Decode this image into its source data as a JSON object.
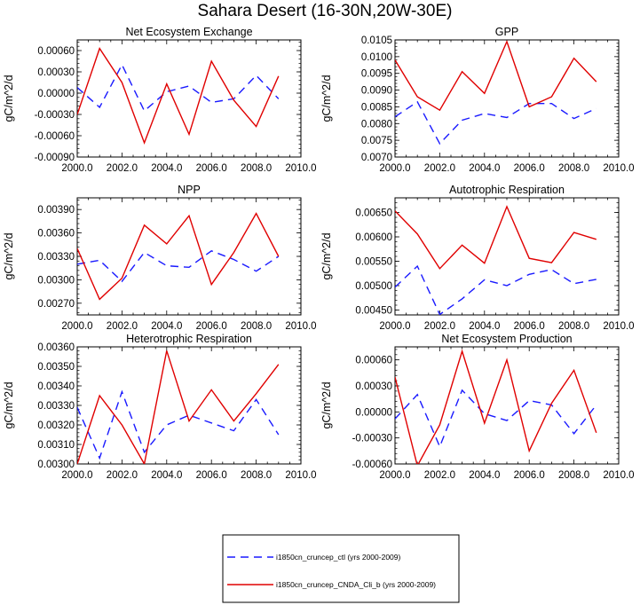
{
  "figure": {
    "title": "Sahara Desert (16-30N,20W-30E)"
  },
  "legend": {
    "entries": [
      {
        "label": "i1850cn_cruncep_ctl (yrs 2000-2009)",
        "color": "#1a1aff",
        "style": "dashed"
      },
      {
        "label": "i1850cn_cruncep_CNDA_Cli_b (yrs 2000-2009)",
        "color": "#e00000",
        "style": "solid"
      }
    ]
  },
  "chart_data": [
    {
      "type": "line",
      "title": "Net Ecosystem Exchange",
      "ylabel": "gC/m^2/d",
      "xlim": [
        2000,
        2010
      ],
      "xticks": [
        "2000.0",
        "2002.0",
        "2004.0",
        "2006.0",
        "2008.0",
        "2010.0"
      ],
      "ylim": [
        -0.0009,
        0.00075
      ],
      "yticks": [
        "-0.00090",
        "-0.00060",
        "-0.00030",
        "0.00000",
        "0.00030",
        "0.00060"
      ],
      "x": [
        2000,
        2001,
        2002,
        2003,
        2004,
        2005,
        2006,
        2007,
        2008,
        2009
      ],
      "series": [
        {
          "name": "i1850cn_cruncep_ctl (yrs 2000-2009)",
          "color": "#1a1aff",
          "style": "dashed",
          "values": [
            8e-05,
            -0.0002,
            0.0004,
            -0.00025,
            2e-05,
            0.0001,
            -0.00013,
            -8e-05,
            0.00025,
            -8e-05
          ]
        },
        {
          "name": "i1850cn_cruncep_CNDA_Cli_b (yrs 2000-2009)",
          "color": "#e00000",
          "style": "solid",
          "values": [
            -0.0003,
            0.00063,
            0.00015,
            -0.0007,
            0.00013,
            -0.00058,
            0.00045,
            -0.0001,
            -0.00047,
            0.00024
          ]
        }
      ]
    },
    {
      "type": "line",
      "title": "GPP",
      "ylabel": "gC/m^2/d",
      "xlim": [
        2000,
        2010
      ],
      "xticks": [
        "2000.0",
        "2002.0",
        "2004.0",
        "2006.0",
        "2008.0",
        "2010.0"
      ],
      "ylim": [
        0.007,
        0.0105
      ],
      "yticks": [
        "0.0070",
        "0.0075",
        "0.0080",
        "0.0085",
        "0.0090",
        "0.0095",
        "0.0100",
        "0.0105"
      ],
      "x": [
        2000,
        2001,
        2002,
        2003,
        2004,
        2005,
        2006,
        2007,
        2008,
        2009
      ],
      "series": [
        {
          "name": "i1850cn_cruncep_ctl (yrs 2000-2009)",
          "color": "#1a1aff",
          "style": "dashed",
          "values": [
            0.0082,
            0.00865,
            0.0074,
            0.0081,
            0.0083,
            0.00818,
            0.0086,
            0.0086,
            0.00815,
            0.00845
          ]
        },
        {
          "name": "i1850cn_cruncep_CNDA_Cli_b (yrs 2000-2009)",
          "color": "#e00000",
          "style": "solid",
          "values": [
            0.0099,
            0.0088,
            0.0084,
            0.00955,
            0.0089,
            0.01045,
            0.0085,
            0.0088,
            0.00995,
            0.00925
          ]
        }
      ]
    },
    {
      "type": "line",
      "title": "NPP",
      "ylabel": "gC/m^2/d",
      "xlim": [
        2000,
        2010
      ],
      "xticks": [
        "2000.0",
        "2002.0",
        "2004.0",
        "2006.0",
        "2008.0",
        "2010.0"
      ],
      "ylim": [
        0.00255,
        0.00405
      ],
      "yticks": [
        "0.00270",
        "0.00300",
        "0.00330",
        "0.00360",
        "0.00390"
      ],
      "x": [
        2000,
        2001,
        2002,
        2003,
        2004,
        2005,
        2006,
        2007,
        2008,
        2009
      ],
      "series": [
        {
          "name": "i1850cn_cruncep_ctl (yrs 2000-2009)",
          "color": "#1a1aff",
          "style": "dashed",
          "values": [
            0.0032,
            0.00325,
            0.00298,
            0.00335,
            0.00318,
            0.00316,
            0.00337,
            0.00326,
            0.00311,
            0.0033
          ]
        },
        {
          "name": "i1850cn_cruncep_CNDA_Cli_b (yrs 2000-2009)",
          "color": "#e00000",
          "style": "solid",
          "values": [
            0.0034,
            0.00275,
            0.00302,
            0.0037,
            0.00346,
            0.00382,
            0.00294,
            0.00335,
            0.00385,
            0.0033
          ]
        }
      ]
    },
    {
      "type": "line",
      "title": "Autotrophic Respiration",
      "ylabel": "gC/m^2/d",
      "xlim": [
        2000,
        2010
      ],
      "xticks": [
        "2000.0",
        "2002.0",
        "2004.0",
        "2006.0",
        "2008.0",
        "2010.0"
      ],
      "ylim": [
        0.0044,
        0.0068
      ],
      "yticks": [
        "0.00450",
        "0.00500",
        "0.00550",
        "0.00600",
        "0.00650"
      ],
      "x": [
        2000,
        2001,
        2002,
        2003,
        2004,
        2005,
        2006,
        2007,
        2008,
        2009
      ],
      "series": [
        {
          "name": "i1850cn_cruncep_ctl (yrs 2000-2009)",
          "color": "#1a1aff",
          "style": "dashed",
          "values": [
            0.00497,
            0.0054,
            0.00441,
            0.00473,
            0.00512,
            0.005,
            0.00523,
            0.00533,
            0.00504,
            0.00513
          ]
        },
        {
          "name": "i1850cn_cruncep_CNDA_Cli_b (yrs 2000-2009)",
          "color": "#e00000",
          "style": "solid",
          "values": [
            0.00653,
            0.00606,
            0.00535,
            0.00583,
            0.00546,
            0.00662,
            0.00556,
            0.00547,
            0.00609,
            0.00595
          ]
        }
      ]
    },
    {
      "type": "line",
      "title": "Heterotrophic Respiration",
      "ylabel": "gC/m^2/d",
      "xlim": [
        2000,
        2010
      ],
      "xticks": [
        "2000.0",
        "2002.0",
        "2004.0",
        "2006.0",
        "2008.0",
        "2010.0"
      ],
      "ylim": [
        0.003,
        0.0036
      ],
      "yticks": [
        "0.00300",
        "0.00310",
        "0.00320",
        "0.00330",
        "0.00340",
        "0.00350",
        "0.00360"
      ],
      "x": [
        2000,
        2001,
        2002,
        2003,
        2004,
        2005,
        2006,
        2007,
        2008,
        2009
      ],
      "series": [
        {
          "name": "i1850cn_cruncep_ctl (yrs 2000-2009)",
          "color": "#1a1aff",
          "style": "dashed",
          "values": [
            0.00329,
            0.00303,
            0.00337,
            0.00306,
            0.0032,
            0.00325,
            0.00321,
            0.00317,
            0.00333,
            0.00315
          ]
        },
        {
          "name": "i1850cn_cruncep_CNDA_Cli_b (yrs 2000-2009)",
          "color": "#e00000",
          "style": "solid",
          "values": [
            0.003,
            0.00335,
            0.0032,
            0.003,
            0.00358,
            0.00322,
            0.00338,
            0.00322,
            0.00336,
            0.00351
          ]
        }
      ]
    },
    {
      "type": "line",
      "title": "Net Ecosystem Production",
      "ylabel": "gC/m^2/d",
      "xlim": [
        2000,
        2010
      ],
      "xticks": [
        "2000.0",
        "2002.0",
        "2004.0",
        "2006.0",
        "2008.0",
        "2010.0"
      ],
      "ylim": [
        -0.0006,
        0.00075
      ],
      "yticks": [
        "-0.00060",
        "-0.00030",
        "0.00000",
        "0.00030",
        "0.00060"
      ],
      "x": [
        2000,
        2001,
        2002,
        2003,
        2004,
        2005,
        2006,
        2007,
        2008,
        2009
      ],
      "series": [
        {
          "name": "i1850cn_cruncep_ctl (yrs 2000-2009)",
          "color": "#1a1aff",
          "style": "dashed",
          "values": [
            -8e-05,
            0.0002,
            -0.0004,
            0.00025,
            -2e-05,
            -0.0001,
            0.00013,
            8e-05,
            -0.00025,
            8e-05
          ]
        },
        {
          "name": "i1850cn_cruncep_CNDA_Cli_b (yrs 2000-2009)",
          "color": "#e00000",
          "style": "solid",
          "values": [
            0.0004,
            -0.00062,
            -0.00015,
            0.0007,
            -0.00013,
            0.0006,
            -0.00045,
            0.0001,
            0.00048,
            -0.00024
          ]
        }
      ]
    }
  ]
}
